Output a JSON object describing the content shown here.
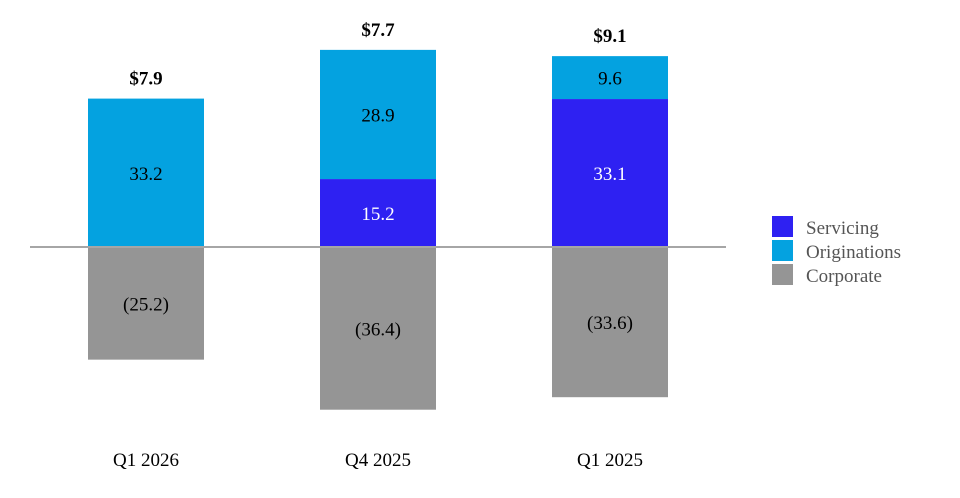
{
  "chart_data": {
    "type": "bar",
    "stacked": true,
    "categories": [
      "Q1 2026",
      "Q4 2025",
      "Q1 2025"
    ],
    "series": [
      {
        "name": "Servicing",
        "color": "#2e21f2",
        "values": [
          0,
          15.2,
          33.1
        ],
        "labels": [
          "",
          "15.2",
          "33.1"
        ]
      },
      {
        "name": "Originations",
        "color": "#04a2e0",
        "values": [
          33.2,
          28.9,
          9.6
        ],
        "labels": [
          "33.2",
          "28.9",
          "9.6"
        ]
      },
      {
        "name": "Corporate",
        "color": "#959595",
        "values": [
          -25.2,
          -36.4,
          -33.6
        ],
        "labels": [
          "(25.2)",
          "(36.4)",
          "(33.6)"
        ]
      }
    ],
    "totals": [
      "$7.9",
      "$7.7",
      "$9.1"
    ],
    "legend_position": "right",
    "grid": false,
    "baseline_color": "#a6a6a6"
  }
}
